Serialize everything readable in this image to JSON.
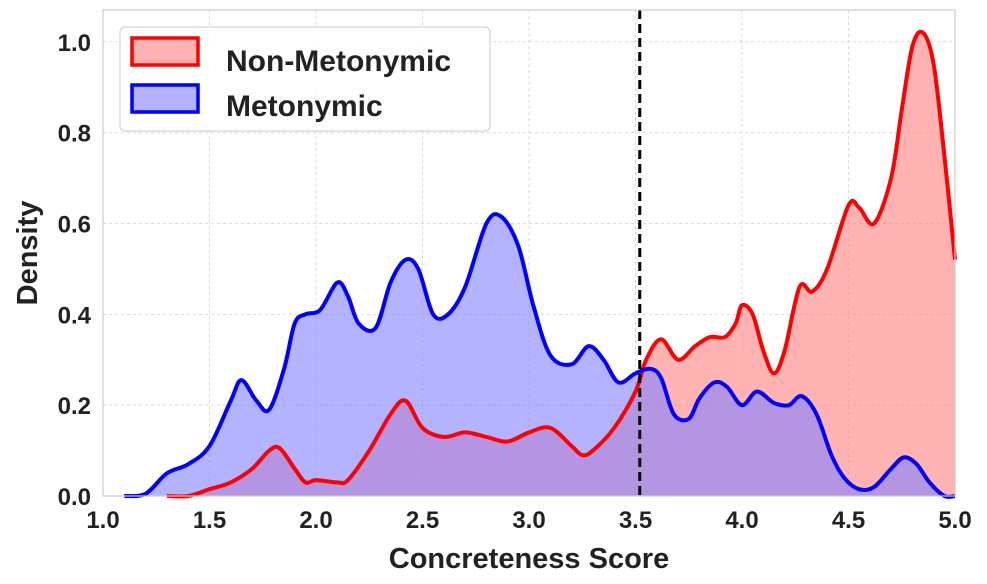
{
  "chart_data": {
    "type": "area",
    "title": "",
    "xlabel": "Concreteness Score",
    "ylabel": "Density",
    "xlim": [
      1.0,
      5.0
    ],
    "ylim": [
      0.0,
      1.07
    ],
    "xticks": [
      1.0,
      1.5,
      2.0,
      2.5,
      3.0,
      3.5,
      4.0,
      4.5,
      5.0
    ],
    "xtick_labels": [
      "1.0",
      "1.5",
      "2.0",
      "2.5",
      "3.0",
      "3.5",
      "4.0",
      "4.5",
      "5.0"
    ],
    "yticks": [
      0.0,
      0.2,
      0.4,
      0.6,
      0.8,
      1.0
    ],
    "ytick_labels": [
      "0.0",
      "0.2",
      "0.4",
      "0.6",
      "0.8",
      "1.0"
    ],
    "grid": true,
    "legend_position": "top-left",
    "threshold_line": {
      "x": 3.52,
      "style": "dashed",
      "color": "#000000"
    },
    "series": [
      {
        "name": "Non-Metonymic",
        "line_color": "#ff0000",
        "fill_color": "#ff8080",
        "fill_opacity": 0.6,
        "x": [
          1.3,
          1.4,
          1.5,
          1.6,
          1.7,
          1.78,
          1.83,
          1.9,
          1.95,
          2.0,
          2.1,
          2.15,
          2.25,
          2.35,
          2.42,
          2.5,
          2.6,
          2.7,
          2.8,
          2.9,
          3.0,
          3.1,
          3.2,
          3.25,
          3.3,
          3.4,
          3.5,
          3.55,
          3.62,
          3.7,
          3.78,
          3.85,
          3.92,
          3.97,
          4.0,
          4.05,
          4.1,
          4.15,
          4.2,
          4.27,
          4.33,
          4.4,
          4.5,
          4.55,
          4.62,
          4.7,
          4.75,
          4.8,
          4.85,
          4.9,
          4.95,
          5.0
        ],
        "y": [
          0.0,
          0.0,
          0.015,
          0.03,
          0.06,
          0.1,
          0.105,
          0.06,
          0.03,
          0.035,
          0.03,
          0.035,
          0.1,
          0.18,
          0.21,
          0.15,
          0.13,
          0.14,
          0.13,
          0.12,
          0.14,
          0.15,
          0.11,
          0.09,
          0.1,
          0.15,
          0.23,
          0.3,
          0.345,
          0.3,
          0.33,
          0.35,
          0.35,
          0.38,
          0.42,
          0.4,
          0.32,
          0.27,
          0.32,
          0.46,
          0.45,
          0.5,
          0.64,
          0.635,
          0.6,
          0.7,
          0.85,
          0.99,
          1.02,
          0.95,
          0.75,
          0.52
        ]
      },
      {
        "name": "Metonymic",
        "line_color": "#0000ff",
        "fill_color": "#8080ff",
        "fill_opacity": 0.6,
        "x": [
          1.1,
          1.2,
          1.3,
          1.4,
          1.5,
          1.6,
          1.65,
          1.72,
          1.78,
          1.85,
          1.9,
          1.95,
          2.02,
          2.1,
          2.15,
          2.2,
          2.28,
          2.35,
          2.42,
          2.48,
          2.55,
          2.62,
          2.7,
          2.8,
          2.87,
          2.95,
          3.02,
          3.1,
          3.2,
          3.28,
          3.35,
          3.42,
          3.5,
          3.57,
          3.62,
          3.68,
          3.75,
          3.8,
          3.87,
          3.93,
          4.0,
          4.07,
          4.15,
          4.22,
          4.28,
          4.35,
          4.42,
          4.48,
          4.55,
          4.62,
          4.7,
          4.76,
          4.82,
          4.88,
          4.95,
          5.0
        ],
        "y": [
          0.0,
          0.005,
          0.05,
          0.07,
          0.11,
          0.21,
          0.255,
          0.21,
          0.19,
          0.28,
          0.38,
          0.4,
          0.41,
          0.47,
          0.44,
          0.38,
          0.37,
          0.47,
          0.52,
          0.5,
          0.4,
          0.4,
          0.46,
          0.6,
          0.615,
          0.55,
          0.42,
          0.31,
          0.29,
          0.33,
          0.3,
          0.25,
          0.27,
          0.28,
          0.26,
          0.18,
          0.17,
          0.215,
          0.25,
          0.24,
          0.2,
          0.23,
          0.205,
          0.2,
          0.22,
          0.18,
          0.09,
          0.04,
          0.015,
          0.02,
          0.06,
          0.085,
          0.07,
          0.03,
          0.0,
          0.0
        ]
      }
    ]
  }
}
